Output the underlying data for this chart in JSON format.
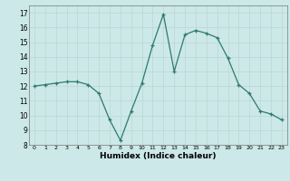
{
  "x": [
    0,
    1,
    2,
    3,
    4,
    5,
    6,
    7,
    8,
    9,
    10,
    11,
    12,
    13,
    14,
    15,
    16,
    17,
    18,
    19,
    20,
    21,
    22,
    23
  ],
  "y": [
    12.0,
    12.1,
    12.2,
    12.3,
    12.3,
    12.1,
    11.5,
    9.7,
    8.3,
    10.3,
    12.2,
    14.8,
    16.9,
    13.0,
    15.5,
    15.8,
    15.6,
    15.3,
    13.9,
    12.1,
    11.5,
    10.3,
    10.1,
    9.7
  ],
  "xlabel": "Humidex (Indice chaleur)",
  "ylim": [
    8,
    17.5
  ],
  "xlim": [
    -0.5,
    23.5
  ],
  "yticks": [
    8,
    9,
    10,
    11,
    12,
    13,
    14,
    15,
    16,
    17
  ],
  "xticks": [
    0,
    1,
    2,
    3,
    4,
    5,
    6,
    7,
    8,
    9,
    10,
    11,
    12,
    13,
    14,
    15,
    16,
    17,
    18,
    19,
    20,
    21,
    22,
    23
  ],
  "line_color": "#2d7a6e",
  "marker": "+",
  "bg_color": "#cce8e8",
  "grid_color": "#b8d8d4"
}
